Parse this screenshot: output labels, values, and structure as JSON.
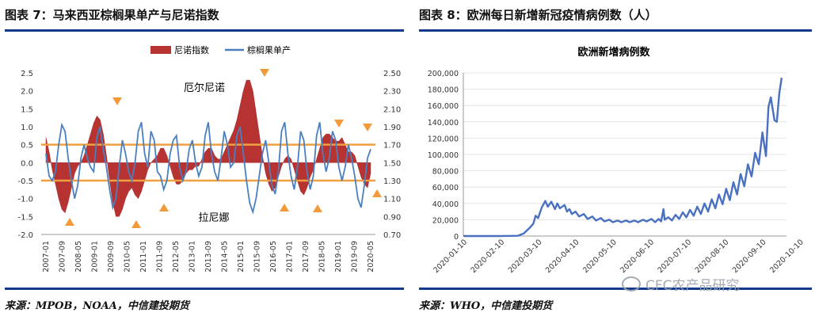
{
  "left": {
    "title": "图表 7：马来西亚棕榈果单产与尼诺指数",
    "source": "来源：MPOB，NOAA，中信建投期货"
  },
  "right": {
    "title": "图表 8：欧洲每日新增新冠疫情病例数（人）",
    "source": "来源：WHO，中信建投期货",
    "watermark": "CFC农产品研究"
  },
  "chart_data": [
    {
      "type": "area+line",
      "title": "",
      "legend": [
        "尼诺指数",
        "棕榈果单产"
      ],
      "annotations": [
        "厄尔尼诺",
        "拉尼娜"
      ],
      "x_ticks": [
        "2007-01",
        "2007-09",
        "2008-05",
        "2009-01",
        "2009-09",
        "2010-05",
        "2011-01",
        "2011-09",
        "2012-05",
        "2013-01",
        "2013-09",
        "2014-05",
        "2015-01",
        "2015-09",
        "2016-05",
        "2017-01",
        "2017-09",
        "2018-05",
        "2019-01",
        "2019-09",
        "2020-05"
      ],
      "left_axis": {
        "label": "",
        "range": [
          -2.0,
          2.5
        ],
        "ticks": [
          "2.5",
          "2.0",
          "1.5",
          "1.0",
          "0.5",
          "0.0",
          "-0.5",
          "-1.0",
          "-1.5",
          "-2.0"
        ]
      },
      "right_axis": {
        "label": "",
        "range": [
          0.7,
          2.5
        ],
        "ticks": [
          "2.50",
          "2.30",
          "2.10",
          "1.90",
          "1.70",
          "1.50",
          "1.30",
          "1.10",
          "0.90",
          "0.70"
        ]
      },
      "reference_lines": [
        0.5,
        -0.5
      ],
      "nino_index": [
        0.7,
        0.3,
        -0.2,
        -0.6,
        -1.0,
        -1.3,
        -1.4,
        -1.1,
        -0.7,
        -0.3,
        -0.1,
        0.0,
        0.2,
        0.5,
        0.8,
        1.1,
        1.3,
        1.2,
        0.8,
        0.2,
        -0.5,
        -1.1,
        -1.5,
        -1.5,
        -1.3,
        -1.0,
        -0.8,
        -0.7,
        -0.9,
        -1.0,
        -0.8,
        -0.5,
        -0.2,
        0.0,
        0.1,
        0.2,
        0.4,
        0.4,
        0.2,
        -0.1,
        -0.4,
        -0.6,
        -0.6,
        -0.5,
        -0.3,
        -0.2,
        -0.2,
        -0.1,
        -0.1,
        0.1,
        0.3,
        0.4,
        0.4,
        0.2,
        0.1,
        0.1,
        0.3,
        0.5,
        0.7,
        0.9,
        1.2,
        1.6,
        2.0,
        2.3,
        2.3,
        2.0,
        1.4,
        0.8,
        0.2,
        -0.3,
        -0.6,
        -0.8,
        -0.7,
        -0.4,
        -0.1,
        0.1,
        0.2,
        0.1,
        -0.2,
        -0.5,
        -0.8,
        -0.9,
        -0.7,
        -0.4,
        -0.2,
        0.1,
        0.4,
        0.7,
        0.8,
        0.8,
        0.7,
        0.6,
        0.6,
        0.7,
        0.5,
        0.3,
        0.3,
        0.2,
        -0.1,
        -0.4,
        -0.6,
        -0.7,
        -0.3
      ],
      "palm_yield": [
        1.6,
        1.35,
        1.3,
        1.4,
        1.7,
        1.92,
        1.85,
        1.55,
        1.3,
        1.1,
        1.25,
        1.55,
        1.7,
        1.55,
        1.45,
        1.4,
        1.78,
        1.9,
        1.65,
        1.45,
        1.2,
        1.0,
        1.1,
        1.45,
        1.75,
        1.6,
        1.4,
        1.3,
        1.5,
        1.85,
        1.95,
        1.6,
        1.45,
        1.85,
        1.75,
        1.4,
        1.35,
        1.2,
        1.3,
        1.6,
        1.75,
        1.8,
        1.45,
        1.3,
        1.4,
        1.65,
        1.75,
        1.5,
        1.35,
        1.45,
        1.8,
        1.95,
        1.6,
        1.4,
        1.3,
        1.55,
        1.85,
        1.7,
        1.45,
        1.5,
        1.8,
        1.9,
        1.6,
        1.3,
        1.05,
        0.95,
        1.1,
        1.35,
        1.6,
        1.75,
        1.5,
        1.25,
        1.15,
        1.4,
        1.85,
        1.95,
        1.6,
        1.35,
        1.2,
        1.45,
        1.85,
        1.75,
        1.4,
        1.2,
        1.35,
        1.8,
        1.95,
        1.6,
        1.4,
        1.55,
        1.85,
        1.75,
        1.45,
        1.3,
        1.45,
        1.7,
        1.55,
        1.35,
        1.1,
        1.0,
        1.25,
        1.55,
        1.65
      ]
    },
    {
      "type": "line",
      "title": "欧洲新增病例数",
      "xlabel": "",
      "ylabel": "",
      "x_ticks": [
        "2020-01-10",
        "2020-02-10",
        "2020-03-10",
        "2020-04-10",
        "2020-05-10",
        "2020-06-10",
        "2020-07-10",
        "2020-08-10",
        "2020-09-10",
        "2020-10-10"
      ],
      "y_ticks": [
        "200,000",
        "180,000",
        "160,000",
        "140,000",
        "120,000",
        "100,000",
        "80,000",
        "60,000",
        "40,000",
        "20,000",
        "0"
      ],
      "ylim": [
        0,
        200000
      ],
      "series": [
        {
          "name": "欧洲新增病例数",
          "points": [
            [
              0,
              0
            ],
            [
              30,
              0
            ],
            [
              45,
              300
            ],
            [
              50,
              3000
            ],
            [
              55,
              10000
            ],
            [
              58,
              15000
            ],
            [
              60,
              25000
            ],
            [
              62,
              22000
            ],
            [
              65,
              35000
            ],
            [
              68,
              43000
            ],
            [
              70,
              36000
            ],
            [
              73,
              42000
            ],
            [
              76,
              33000
            ],
            [
              78,
              40000
            ],
            [
              80,
              34000
            ],
            [
              84,
              38000
            ],
            [
              86,
              30000
            ],
            [
              88,
              33000
            ],
            [
              90,
              27000
            ],
            [
              93,
              30000
            ],
            [
              96,
              24000
            ],
            [
              100,
              27000
            ],
            [
              103,
              21000
            ],
            [
              107,
              24000
            ],
            [
              110,
              19000
            ],
            [
              114,
              22000
            ],
            [
              117,
              18000
            ],
            [
              121,
              20000
            ],
            [
              124,
              17000
            ],
            [
              128,
              19000
            ],
            [
              131,
              17000
            ],
            [
              135,
              19000
            ],
            [
              138,
              17000
            ],
            [
              142,
              19000
            ],
            [
              145,
              17000
            ],
            [
              149,
              20000
            ],
            [
              152,
              18000
            ],
            [
              156,
              21000
            ],
            [
              159,
              17000
            ],
            [
              162,
              21000
            ],
            [
              164,
              18000
            ],
            [
              166,
              33000
            ],
            [
              167,
              20000
            ],
            [
              170,
              23000
            ],
            [
              173,
              19000
            ],
            [
              176,
              26000
            ],
            [
              179,
              21000
            ],
            [
              182,
              29000
            ],
            [
              185,
              23000
            ],
            [
              188,
              32000
            ],
            [
              191,
              25000
            ],
            [
              194,
              36000
            ],
            [
              197,
              27000
            ],
            [
              200,
              40000
            ],
            [
              203,
              30000
            ],
            [
              206,
              45000
            ],
            [
              209,
              34000
            ],
            [
              212,
              51000
            ],
            [
              215,
              39000
            ],
            [
              218,
              58000
            ],
            [
              221,
              44000
            ],
            [
              224,
              66000
            ],
            [
              227,
              51000
            ],
            [
              230,
              76000
            ],
            [
              233,
              61000
            ],
            [
              236,
              88000
            ],
            [
              239,
              73000
            ],
            [
              242,
              102000
            ],
            [
              245,
              88000
            ],
            [
              248,
              127000
            ],
            [
              251,
              98000
            ],
            [
              253,
              158000
            ],
            [
              255,
              170000
            ],
            [
              258,
              142000
            ],
            [
              260,
              140000
            ],
            [
              262,
              175000
            ],
            [
              264,
              194000
            ]
          ]
        }
      ]
    }
  ]
}
